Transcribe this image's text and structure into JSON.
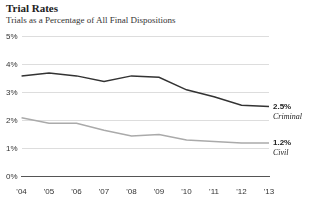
{
  "chart_data": {
    "type": "line",
    "title": "Trial Rates",
    "subtitle": "Trials as a Percentage of All Final Dispositions",
    "categories": [
      "'04",
      "'05",
      "'06",
      "'07",
      "'08",
      "'09",
      "'10",
      "'11",
      "'12",
      "'13"
    ],
    "series": [
      {
        "name": "Criminal",
        "color": "#333333",
        "values": [
          3.6,
          3.7,
          3.6,
          3.4,
          3.6,
          3.55,
          3.1,
          2.85,
          2.55,
          2.5
        ],
        "value_labels": [
          null,
          null,
          null,
          null,
          null,
          null,
          null,
          null,
          null,
          "2.5%"
        ]
      },
      {
        "name": "Civil",
        "color": "#aaaaaa",
        "values": [
          2.1,
          1.9,
          1.9,
          1.65,
          1.45,
          1.5,
          1.3,
          1.25,
          1.2,
          1.2
        ],
        "value_labels": [
          null,
          null,
          null,
          null,
          null,
          null,
          null,
          null,
          null,
          "1.2%"
        ]
      }
    ],
    "ylim": [
      0,
      5
    ],
    "yticks": [
      {
        "value": 0,
        "label": "0%"
      },
      {
        "value": 1,
        "label": "1%"
      },
      {
        "value": 2,
        "label": "2%"
      },
      {
        "value": 3,
        "label": "3%"
      },
      {
        "value": 4,
        "label": "4%"
      },
      {
        "value": 5,
        "label": "5%"
      }
    ],
    "grid": true,
    "data_labels": true
  }
}
